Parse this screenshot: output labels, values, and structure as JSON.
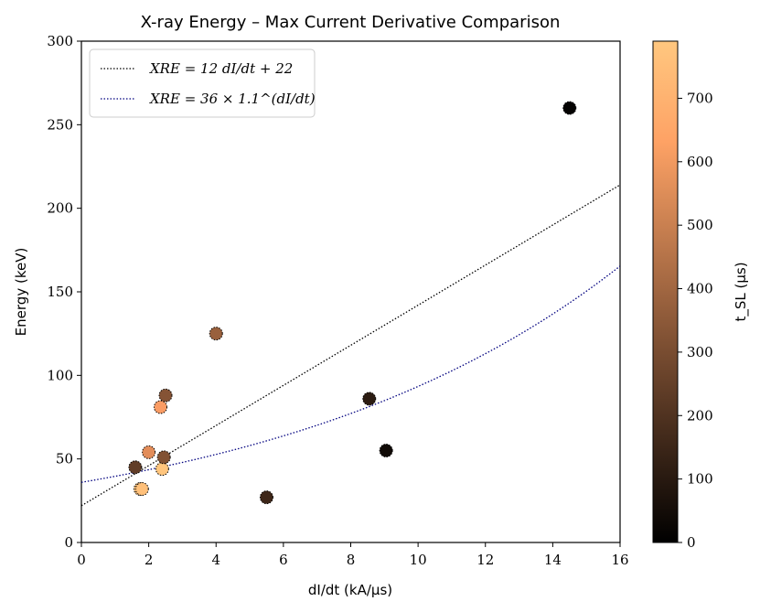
{
  "chart_data": {
    "type": "scatter",
    "title": "X-ray Energy – Max Current Derivative Comparison",
    "xlabel": "dI/dt (kA/μs)",
    "ylabel": "Energy (keV)",
    "xlim": [
      0,
      16
    ],
    "ylim": [
      0,
      300
    ],
    "xticks": [
      "0",
      "2",
      "4",
      "6",
      "8",
      "10",
      "12",
      "14",
      "16"
    ],
    "yticks": [
      "0",
      "50",
      "100",
      "150",
      "200",
      "250",
      "300"
    ],
    "grid": false,
    "legend_position": "top-left",
    "points": [
      {
        "x": 1.6,
        "y": 45,
        "c": 240
      },
      {
        "x": 1.75,
        "y": 32,
        "c": 780
      },
      {
        "x": 1.8,
        "y": 32,
        "c": 760
      },
      {
        "x": 2.0,
        "y": 54,
        "c": 560
      },
      {
        "x": 2.35,
        "y": 81,
        "c": 620
      },
      {
        "x": 2.4,
        "y": 44,
        "c": 780
      },
      {
        "x": 2.45,
        "y": 51,
        "c": 320
      },
      {
        "x": 2.5,
        "y": 88,
        "c": 330
      },
      {
        "x": 4.0,
        "y": 125,
        "c": 380
      },
      {
        "x": 5.5,
        "y": 27,
        "c": 150
      },
      {
        "x": 8.55,
        "y": 86,
        "c": 110
      },
      {
        "x": 9.05,
        "y": 55,
        "c": 40
      },
      {
        "x": 14.5,
        "y": 260,
        "c": 10
      }
    ],
    "series": [
      {
        "name": "XRE = 12 dI/dt + 22",
        "kind": "linear",
        "a": 12,
        "b": 22,
        "color": "#000000"
      },
      {
        "name": "XRE = 36 × 1.1^(dI/dt)",
        "kind": "exponential",
        "a": 36,
        "base": 1.1,
        "color": "#00007f"
      }
    ],
    "colorbar": {
      "label": "t_SL (μs)",
      "range": [
        0,
        790
      ],
      "ticks": [
        "0",
        "100",
        "200",
        "300",
        "400",
        "500",
        "600",
        "700"
      ],
      "colormap": "copper"
    }
  }
}
